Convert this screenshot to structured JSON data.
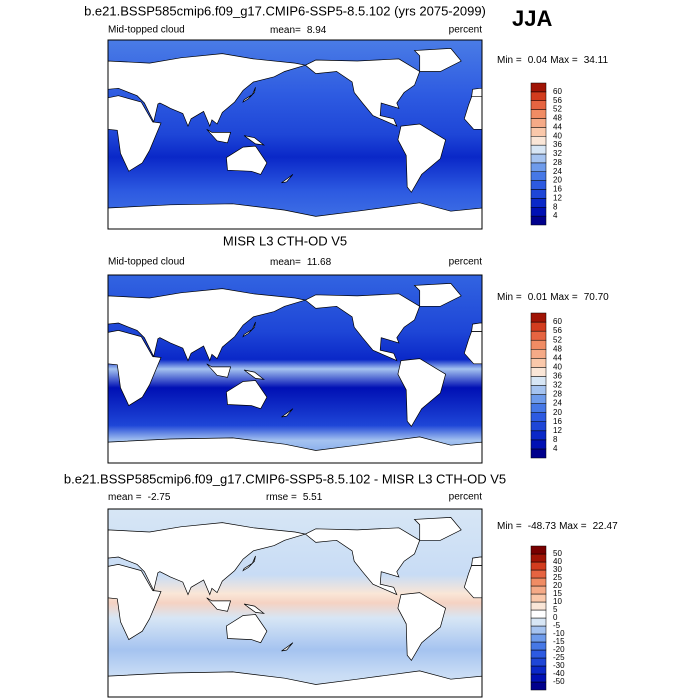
{
  "header": {
    "season": "JJA"
  },
  "panels": [
    {
      "title": "b.e21.BSSP585cmip6.f09_g17.CMIP6-SSP5-8.5.102 (yrs 2075-2099)",
      "left_label": "Mid-topped cloud",
      "stats": [
        {
          "label": "mean=",
          "value": 8.94
        }
      ],
      "units": "percent",
      "min_label": "Min =",
      "min": 0.04,
      "max_label": "Max =",
      "max": 34.11,
      "colorbar": {
        "ticks": [
          4,
          8,
          12,
          16,
          20,
          24,
          28,
          32,
          36,
          40,
          44,
          48,
          52,
          56,
          60
        ],
        "colors": [
          "#00008c",
          "#0010b4",
          "#0a28c8",
          "#1e46d7",
          "#2d5ae1",
          "#4678e6",
          "#6e9beb",
          "#a5c3f0",
          "#d7e6f5",
          "#fae6d7",
          "#fac8aa",
          "#f5aa87",
          "#f08c64",
          "#e66441",
          "#d23c1e",
          "#a01405"
        ]
      }
    },
    {
      "title": "MISR L3 CTH-OD V5",
      "left_label": "Mid-topped cloud",
      "stats": [
        {
          "label": "mean=",
          "value": 11.68
        }
      ],
      "units": "percent",
      "min_label": "Min =",
      "min": 0.01,
      "max_label": "Max =",
      "max": {
        "value": 70.7,
        "label": "70.70"
      },
      "colorbar": {
        "ticks": [
          4,
          8,
          12,
          16,
          20,
          24,
          28,
          32,
          36,
          40,
          44,
          48,
          52,
          56,
          60
        ],
        "colors": [
          "#00008c",
          "#0010b4",
          "#0a28c8",
          "#1e46d7",
          "#2d5ae1",
          "#4678e6",
          "#6e9beb",
          "#a5c3f0",
          "#d7e6f5",
          "#fae6d7",
          "#fac8aa",
          "#f5aa87",
          "#f08c64",
          "#e66441",
          "#d23c1e",
          "#a01405"
        ]
      }
    },
    {
      "title": "b.e21.BSSP585cmip6.f09_g17.CMIP6-SSP5-8.5.102 - MISR L3 CTH-OD V5",
      "stats": [
        {
          "label": "mean =",
          "value": -2.75
        },
        {
          "label": "rmse =",
          "value": 5.51
        }
      ],
      "units": "percent",
      "min_label": "Min =",
      "min": -48.73,
      "max_label": "Max =",
      "max": 22.47,
      "colorbar": {
        "ticks": [
          -50,
          -40,
          -30,
          -25,
          -20,
          -15,
          -10,
          -5,
          0,
          5,
          10,
          15,
          20,
          25,
          30,
          40,
          50
        ],
        "colors": [
          "#00008c",
          "#0010b4",
          "#0a28c8",
          "#1e46d7",
          "#2d5ae1",
          "#4678e6",
          "#6e9beb",
          "#a5c3f0",
          "#d7e6f5",
          "#ffffff",
          "#fae6d7",
          "#fac8aa",
          "#f5aa87",
          "#f08c64",
          "#e66441",
          "#d23c1e",
          "#a01405",
          "#780000"
        ]
      }
    }
  ]
}
